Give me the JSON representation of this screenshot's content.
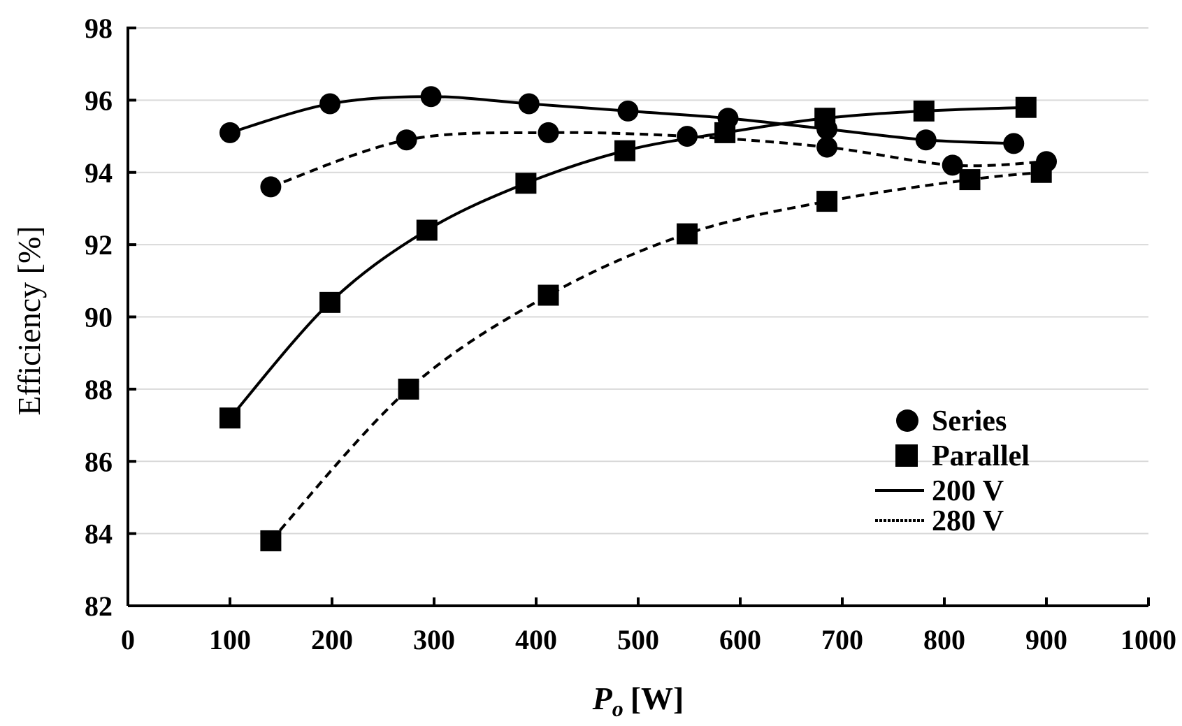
{
  "chart_data": {
    "type": "line",
    "title": "",
    "ylabel": "Efficiency [%]",
    "xlabel": {
      "symbol": "P",
      "subscript": "o",
      "unit": "[W]"
    },
    "xlim": [
      0,
      1000
    ],
    "ylim": [
      82,
      98
    ],
    "x_ticks": [
      0,
      100,
      200,
      300,
      400,
      500,
      600,
      700,
      800,
      900,
      1000
    ],
    "y_ticks": [
      82,
      84,
      86,
      88,
      90,
      92,
      94,
      96,
      98
    ],
    "grid": "horizontal",
    "legend": {
      "position": "bottom-right",
      "entries": [
        {
          "label": "Series",
          "kind": "marker",
          "marker": "circle"
        },
        {
          "label": "Parallel",
          "kind": "marker",
          "marker": "square"
        },
        {
          "label": "200 V",
          "kind": "line",
          "dash": "solid"
        },
        {
          "label": "280 V",
          "kind": "line",
          "dash": "dashed"
        }
      ]
    },
    "series": [
      {
        "name": "Series 200 V",
        "marker": "circle",
        "dash": "solid",
        "x": [
          100,
          198,
          297,
          393,
          490,
          588,
          685,
          782,
          868
        ],
        "y": [
          95.1,
          95.9,
          96.1,
          95.9,
          95.7,
          95.5,
          95.2,
          94.9,
          94.8
        ]
      },
      {
        "name": "Series 280 V",
        "marker": "circle",
        "dash": "dashed",
        "x": [
          140,
          273,
          412,
          548,
          685,
          808,
          900
        ],
        "y": [
          93.6,
          94.9,
          95.1,
          95.0,
          94.7,
          94.2,
          94.3
        ]
      },
      {
        "name": "Parallel 200 V",
        "marker": "square",
        "dash": "solid",
        "x": [
          100,
          198,
          293,
          390,
          487,
          585,
          683,
          780,
          880
        ],
        "y": [
          87.2,
          90.4,
          92.4,
          93.7,
          94.6,
          95.1,
          95.5,
          95.7,
          95.8
        ]
      },
      {
        "name": "Parallel 280 V",
        "marker": "square",
        "dash": "dashed",
        "x": [
          140,
          275,
          412,
          548,
          685,
          825,
          895
        ],
        "y": [
          83.8,
          88.0,
          90.6,
          92.3,
          93.2,
          93.8,
          94.0
        ]
      }
    ]
  }
}
